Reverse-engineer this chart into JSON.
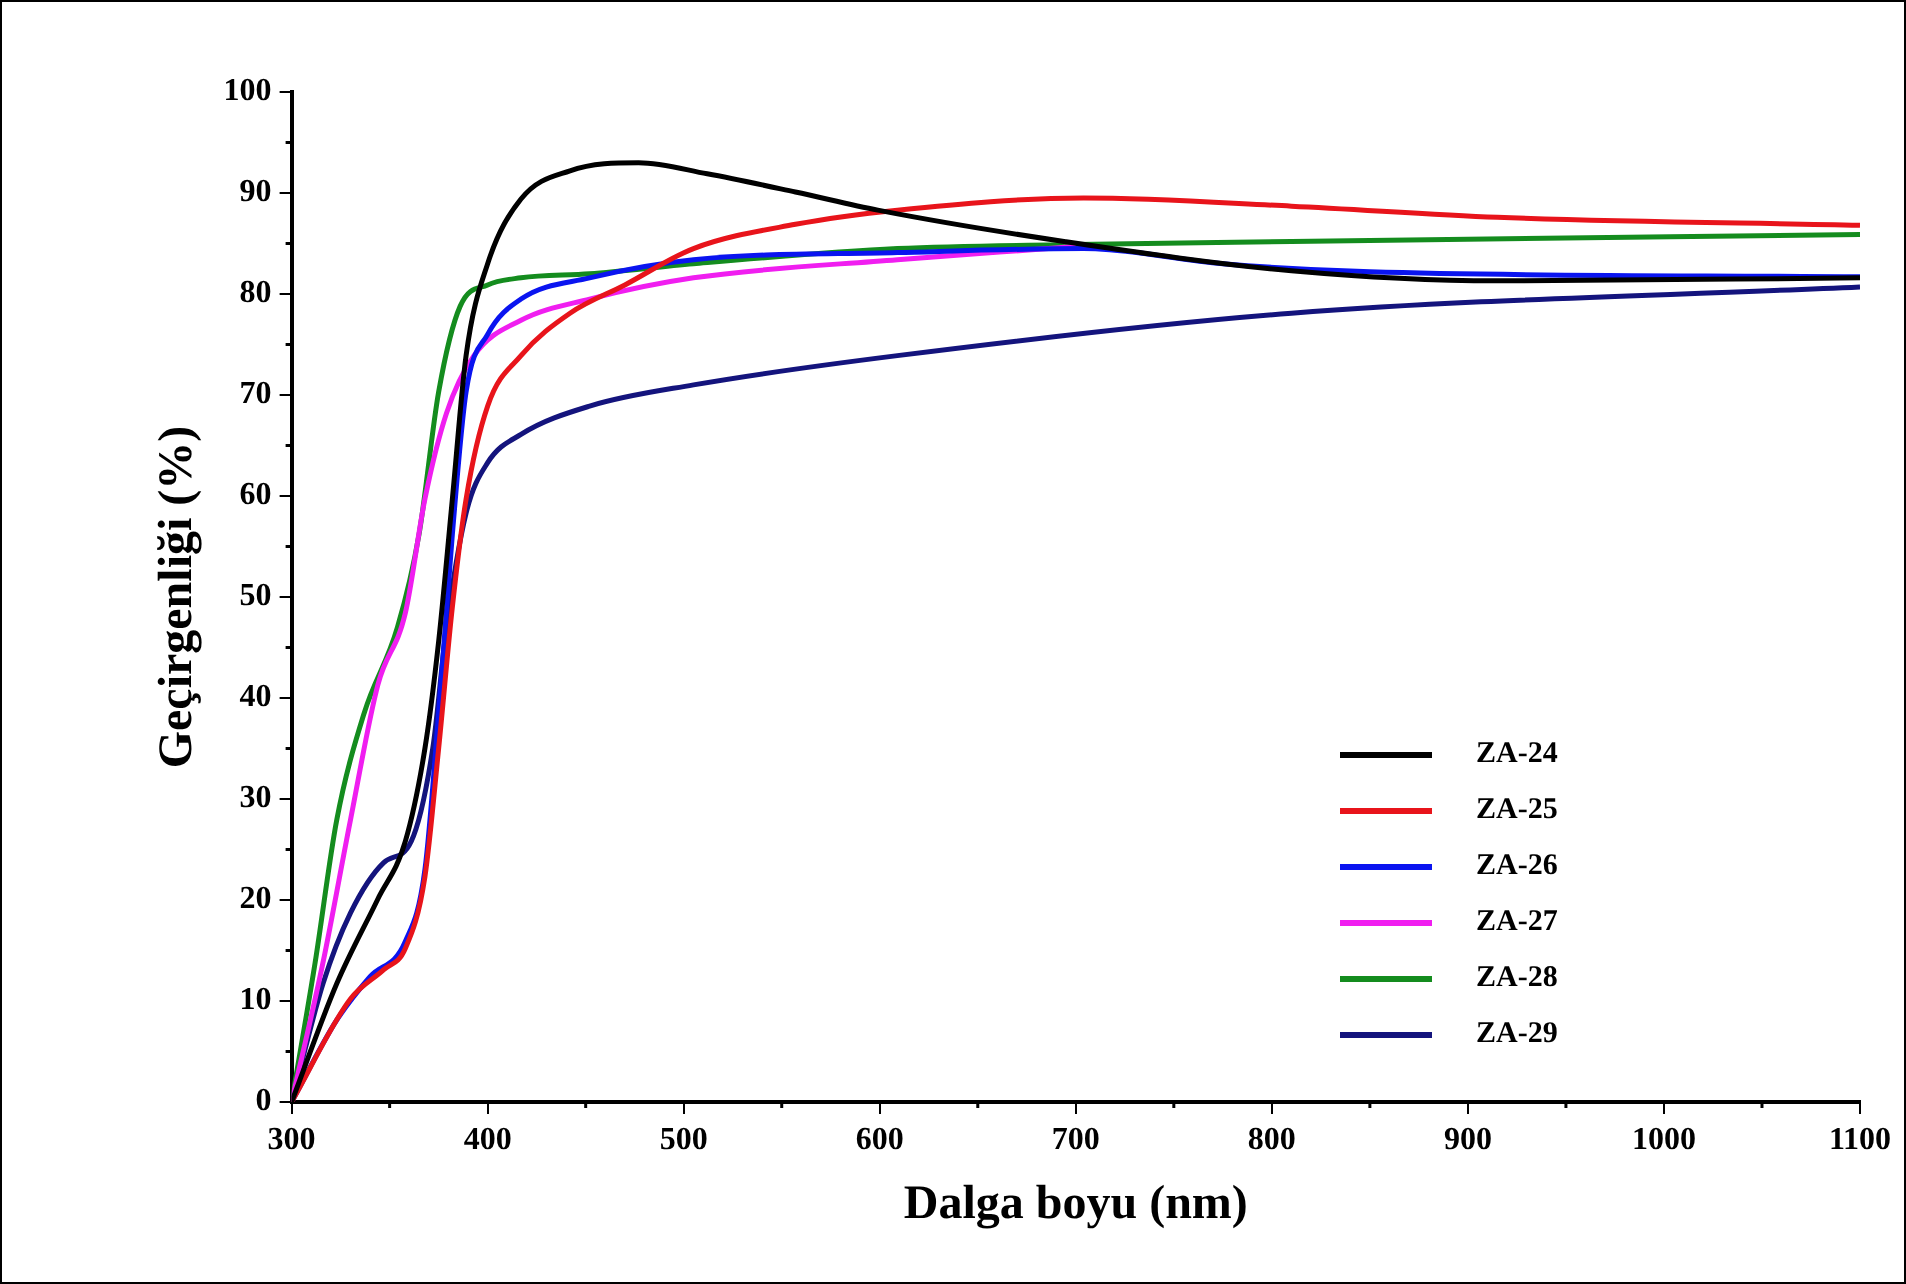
{
  "chart_data": {
    "type": "line",
    "xlabel": "Dalga boyu (nm)",
    "ylabel": "Geçirgenliği (%)",
    "xlim": [
      300,
      1100
    ],
    "xticks": [
      300,
      400,
      500,
      600,
      700,
      800,
      900,
      1000,
      1100
    ],
    "ylim": [
      0,
      100
    ],
    "yticks": [
      0,
      10,
      20,
      30,
      40,
      50,
      60,
      70,
      80,
      90,
      100
    ],
    "grid": false,
    "legend": "bottom right",
    "marker": "none",
    "line_style": "solid",
    "series": [
      {
        "name": "ZA-24",
        "color": "#000000",
        "x": [
          300,
          323,
          344,
          358,
          368,
          375,
          382,
          389,
          400,
          417,
          442,
          477,
          512,
          557,
          599,
          694,
          810,
          915,
          1100
        ],
        "values": [
          0,
          11.7,
          20.1,
          25.8,
          35,
          45.6,
          59.7,
          73.9,
          83,
          89.4,
          92.2,
          93,
          91.9,
          90.1,
          88.3,
          85.2,
          82.3,
          81.3,
          81.6
        ]
      },
      {
        "name": "ZA-25",
        "color": "#e8141b",
        "x": [
          300,
          330,
          347,
          358,
          368,
          375,
          382,
          389,
          400,
          417,
          442,
          470,
          505,
          557,
          609,
          704,
          810,
          915,
          1100
        ],
        "values": [
          0,
          10.2,
          13.1,
          15.2,
          22.3,
          35,
          49,
          59.7,
          68.9,
          73.9,
          78.1,
          80.9,
          84.5,
          86.9,
          88.3,
          89.5,
          88.7,
          87.6,
          86.8
        ]
      },
      {
        "name": "ZA-26",
        "color": "#0a14f0",
        "x": [
          300,
          323,
          340,
          358,
          368,
          375,
          382,
          389,
          400,
          417,
          452,
          505,
          609,
          704,
          775,
          850,
          1100
        ],
        "values": [
          0,
          8.1,
          12.4,
          15.9,
          23,
          38.5,
          56.2,
          70.3,
          76,
          79.5,
          81.6,
          83.4,
          84.1,
          84.5,
          83,
          82.2,
          81.7
        ]
      },
      {
        "name": "ZA-27",
        "color": "#f01ef0",
        "x": [
          300,
          316,
          330,
          344,
          358,
          368,
          379,
          393,
          417,
          452,
          505,
          609,
          686,
          700
        ],
        "values": [
          0,
          13.8,
          27.9,
          41.3,
          48.4,
          59.7,
          68.2,
          73.9,
          77.4,
          79.5,
          81.6,
          83.4,
          84.5,
          84.7
        ]
      },
      {
        "name": "ZA-28",
        "color": "#148c1e",
        "x": [
          300,
          312,
          323,
          337,
          354,
          365,
          375,
          386,
          400,
          417,
          452,
          505,
          609,
          700,
          810,
          1100
        ],
        "values": [
          0,
          13.8,
          27.9,
          38.5,
          47,
          56.2,
          70.3,
          78.8,
          80.9,
          81.6,
          82,
          83,
          84.5,
          84.9,
          85.2,
          85.9
        ]
      },
      {
        "name": "ZA-29",
        "color": "#14147d",
        "x": [
          300,
          316,
          330,
          347,
          361,
          372,
          379,
          389,
          400,
          417,
          452,
          505,
          609,
          810,
          1100
        ],
        "values": [
          0,
          11.7,
          18.7,
          23.7,
          25.8,
          35,
          47,
          58.3,
          63.3,
          66.1,
          68.9,
          71,
          73.9,
          78.1,
          80.7
        ]
      }
    ]
  }
}
